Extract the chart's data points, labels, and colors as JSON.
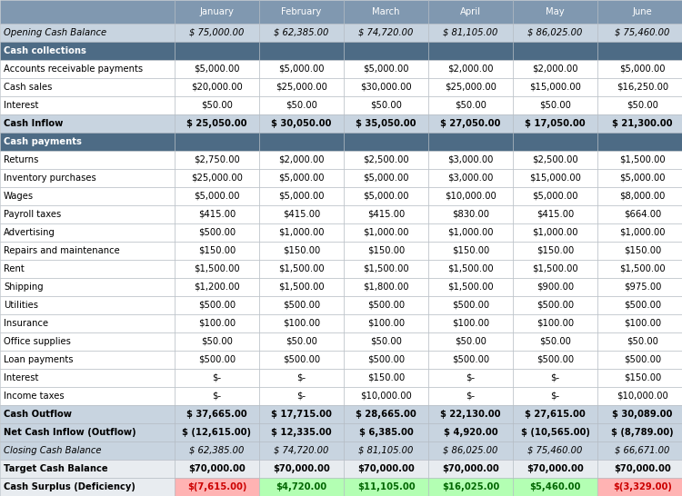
{
  "columns": [
    "",
    "January",
    "February",
    "March",
    "April",
    "May",
    "June"
  ],
  "rows": [
    {
      "label": "Opening Cash Balance",
      "values": [
        "$ 75,000.00",
        "$ 62,385.00",
        "$ 74,720.00",
        "$ 81,105.00",
        "$ 86,025.00",
        "$ 75,460.00"
      ],
      "type": "italic_gray"
    },
    {
      "label": "Cash collections",
      "values": [
        "",
        "",
        "",
        "",
        "",
        ""
      ],
      "type": "section_header"
    },
    {
      "label": "Accounts receivable payments",
      "values": [
        "$5,000.00",
        "$5,000.00",
        "$5,000.00",
        "$2,000.00",
        "$2,000.00",
        "$5,000.00"
      ],
      "type": "normal"
    },
    {
      "label": "Cash sales",
      "values": [
        "$20,000.00",
        "$25,000.00",
        "$30,000.00",
        "$25,000.00",
        "$15,000.00",
        "$16,250.00"
      ],
      "type": "normal"
    },
    {
      "label": "Interest",
      "values": [
        "$50.00",
        "$50.00",
        "$50.00",
        "$50.00",
        "$50.00",
        "$50.00"
      ],
      "type": "normal"
    },
    {
      "label": "Cash Inflow",
      "values": [
        "$ 25,050.00",
        "$ 30,050.00",
        "$ 35,050.00",
        "$ 27,050.00",
        "$ 17,050.00",
        "$ 21,300.00"
      ],
      "type": "bold_gray"
    },
    {
      "label": "Cash payments",
      "values": [
        "",
        "",
        "",
        "",
        "",
        ""
      ],
      "type": "section_header"
    },
    {
      "label": "Returns",
      "values": [
        "$2,750.00",
        "$2,000.00",
        "$2,500.00",
        "$3,000.00",
        "$2,500.00",
        "$1,500.00"
      ],
      "type": "normal"
    },
    {
      "label": "Inventory purchases",
      "values": [
        "$25,000.00",
        "$5,000.00",
        "$5,000.00",
        "$3,000.00",
        "$15,000.00",
        "$5,000.00"
      ],
      "type": "normal"
    },
    {
      "label": "Wages",
      "values": [
        "$5,000.00",
        "$5,000.00",
        "$5,000.00",
        "$10,000.00",
        "$5,000.00",
        "$8,000.00"
      ],
      "type": "normal"
    },
    {
      "label": "Payroll taxes",
      "values": [
        "$415.00",
        "$415.00",
        "$415.00",
        "$830.00",
        "$415.00",
        "$664.00"
      ],
      "type": "normal"
    },
    {
      "label": "Advertising",
      "values": [
        "$500.00",
        "$1,000.00",
        "$1,000.00",
        "$1,000.00",
        "$1,000.00",
        "$1,000.00"
      ],
      "type": "normal"
    },
    {
      "label": "Repairs and maintenance",
      "values": [
        "$150.00",
        "$150.00",
        "$150.00",
        "$150.00",
        "$150.00",
        "$150.00"
      ],
      "type": "normal"
    },
    {
      "label": "Rent",
      "values": [
        "$1,500.00",
        "$1,500.00",
        "$1,500.00",
        "$1,500.00",
        "$1,500.00",
        "$1,500.00"
      ],
      "type": "normal"
    },
    {
      "label": "Shipping",
      "values": [
        "$1,200.00",
        "$1,500.00",
        "$1,800.00",
        "$1,500.00",
        "$900.00",
        "$975.00"
      ],
      "type": "normal"
    },
    {
      "label": "Utilities",
      "values": [
        "$500.00",
        "$500.00",
        "$500.00",
        "$500.00",
        "$500.00",
        "$500.00"
      ],
      "type": "normal"
    },
    {
      "label": "Insurance",
      "values": [
        "$100.00",
        "$100.00",
        "$100.00",
        "$100.00",
        "$100.00",
        "$100.00"
      ],
      "type": "normal"
    },
    {
      "label": "Office supplies",
      "values": [
        "$50.00",
        "$50.00",
        "$50.00",
        "$50.00",
        "$50.00",
        "$50.00"
      ],
      "type": "normal"
    },
    {
      "label": "Loan payments",
      "values": [
        "$500.00",
        "$500.00",
        "$500.00",
        "$500.00",
        "$500.00",
        "$500.00"
      ],
      "type": "normal"
    },
    {
      "label": "Interest",
      "values": [
        "$-",
        "$-",
        "$150.00",
        "$-",
        "$-",
        "$150.00"
      ],
      "type": "normal"
    },
    {
      "label": "Income taxes",
      "values": [
        "$-",
        "$-",
        "$10,000.00",
        "$-",
        "$-",
        "$10,000.00"
      ],
      "type": "normal"
    },
    {
      "label": "Cash Outflow",
      "values": [
        "$ 37,665.00",
        "$ 17,715.00",
        "$ 28,665.00",
        "$ 22,130.00",
        "$ 27,615.00",
        "$ 30,089.00"
      ],
      "type": "bold_gray"
    },
    {
      "label": "Net Cash Inflow (Outflow)",
      "values": [
        "$ (12,615.00)",
        "$ 12,335.00",
        "$ 6,385.00",
        "$ 4,920.00",
        "$ (10,565.00)",
        "$ (8,789.00)"
      ],
      "type": "bold_gray"
    },
    {
      "label": "Closing Cash Balance",
      "values": [
        "$ 62,385.00",
        "$ 74,720.00",
        "$ 81,105.00",
        "$ 86,025.00",
        "$ 75,460.00",
        "$ 66,671.00"
      ],
      "type": "italic_gray"
    },
    {
      "label": "Target Cash Balance",
      "values": [
        "$70,000.00",
        "$70,000.00",
        "$70,000.00",
        "$70,000.00",
        "$70,000.00",
        "$70,000.00"
      ],
      "type": "bold"
    },
    {
      "label": "Cash Surplus (Deficiency)",
      "values": [
        "$(7,615.00)",
        "$4,720.00",
        "$11,105.00",
        "$16,025.00",
        "$5,460.00",
        "$(3,329.00)"
      ],
      "type": "surplus"
    }
  ],
  "surplus_colors": [
    "#ffb3b3",
    "#b3ffb3",
    "#b3ffb3",
    "#b3ffb3",
    "#b3ffb3",
    "#ffb3b3"
  ],
  "surplus_text_colors": [
    "#cc0000",
    "#006600",
    "#006600",
    "#006600",
    "#006600",
    "#cc0000"
  ],
  "header_bg": "#8098b0",
  "section_header_bg": "#4d6b85",
  "bold_gray_bg": "#c8d4e0",
  "italic_gray_bg": "#c8d4e0",
  "target_bg": "#e8ecf0",
  "normal_bg": "#ffffff",
  "header_text_color": "#ffffff",
  "section_header_text_color": "#ffffff",
  "font_size": 7.2
}
